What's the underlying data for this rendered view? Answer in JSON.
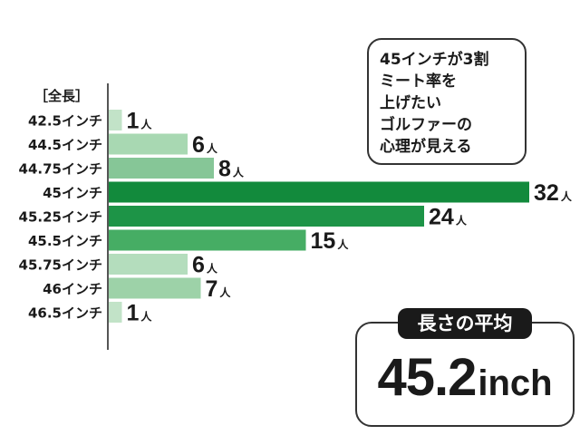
{
  "chart_data": {
    "type": "bar",
    "orientation": "horizontal",
    "axis_header": "［全長］",
    "categories": [
      "42.5インチ",
      "44.5インチ",
      "44.75インチ",
      "45インチ",
      "45.25インチ",
      "45.5インチ",
      "45.75インチ",
      "46インチ",
      "46.5インチ"
    ],
    "values": [
      1,
      6,
      8,
      32,
      24,
      15,
      6,
      7,
      1
    ],
    "value_unit": "人",
    "colors": [
      "#c2e3c8",
      "#a8d8b2",
      "#86c697",
      "#128a3c",
      "#1d9447",
      "#46ad64",
      "#b4ddbd",
      "#9dd2a8",
      "#c2e3c8"
    ],
    "xlim": [
      0,
      33
    ],
    "grid": false,
    "legend": "none"
  },
  "callout": {
    "lines": [
      "45インチが3割",
      "ミート率を",
      "上げたい",
      "ゴルファーの",
      "心理が見える"
    ]
  },
  "average": {
    "label": "長さの平均",
    "value": "45.2",
    "unit": "inch"
  }
}
